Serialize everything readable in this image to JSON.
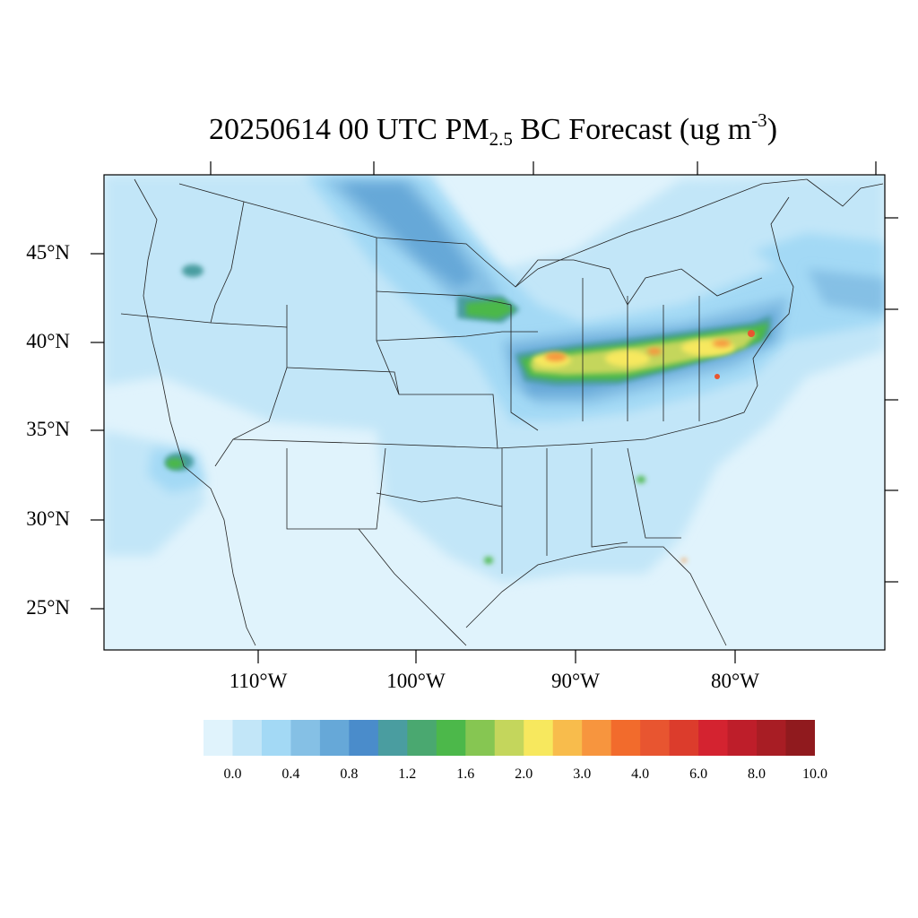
{
  "title": {
    "prefix": "20250614 00 UTC PM",
    "subscript": "2.5",
    "middle": " BC Forecast (ug m",
    "superscript": "-3",
    "suffix": ")"
  },
  "map": {
    "latitude_labels": [
      "45°N",
      "40°N",
      "35°N",
      "30°N",
      "25°N"
    ],
    "longitude_labels": [
      "110°W",
      "100°W",
      "90°W",
      "80°W"
    ]
  },
  "colorbar": {
    "colors": [
      "#e0f3fc",
      "#c2e6f8",
      "#a3d9f5",
      "#85c0e5",
      "#66a8d8",
      "#4a8ccb",
      "#4a9da0",
      "#4aa870",
      "#4cb84a",
      "#86c652",
      "#c4d65c",
      "#f7e85e",
      "#f8bc4c",
      "#f7953e",
      "#f26b2c",
      "#e85530",
      "#dc3c2c",
      "#d42330",
      "#be1e2a",
      "#a81d24",
      "#901a1e"
    ],
    "labels": [
      "0.0",
      "0.4",
      "0.8",
      "1.2",
      "1.6",
      "2.0",
      "3.0",
      "4.0",
      "6.0",
      "8.0",
      "10.0"
    ]
  }
}
